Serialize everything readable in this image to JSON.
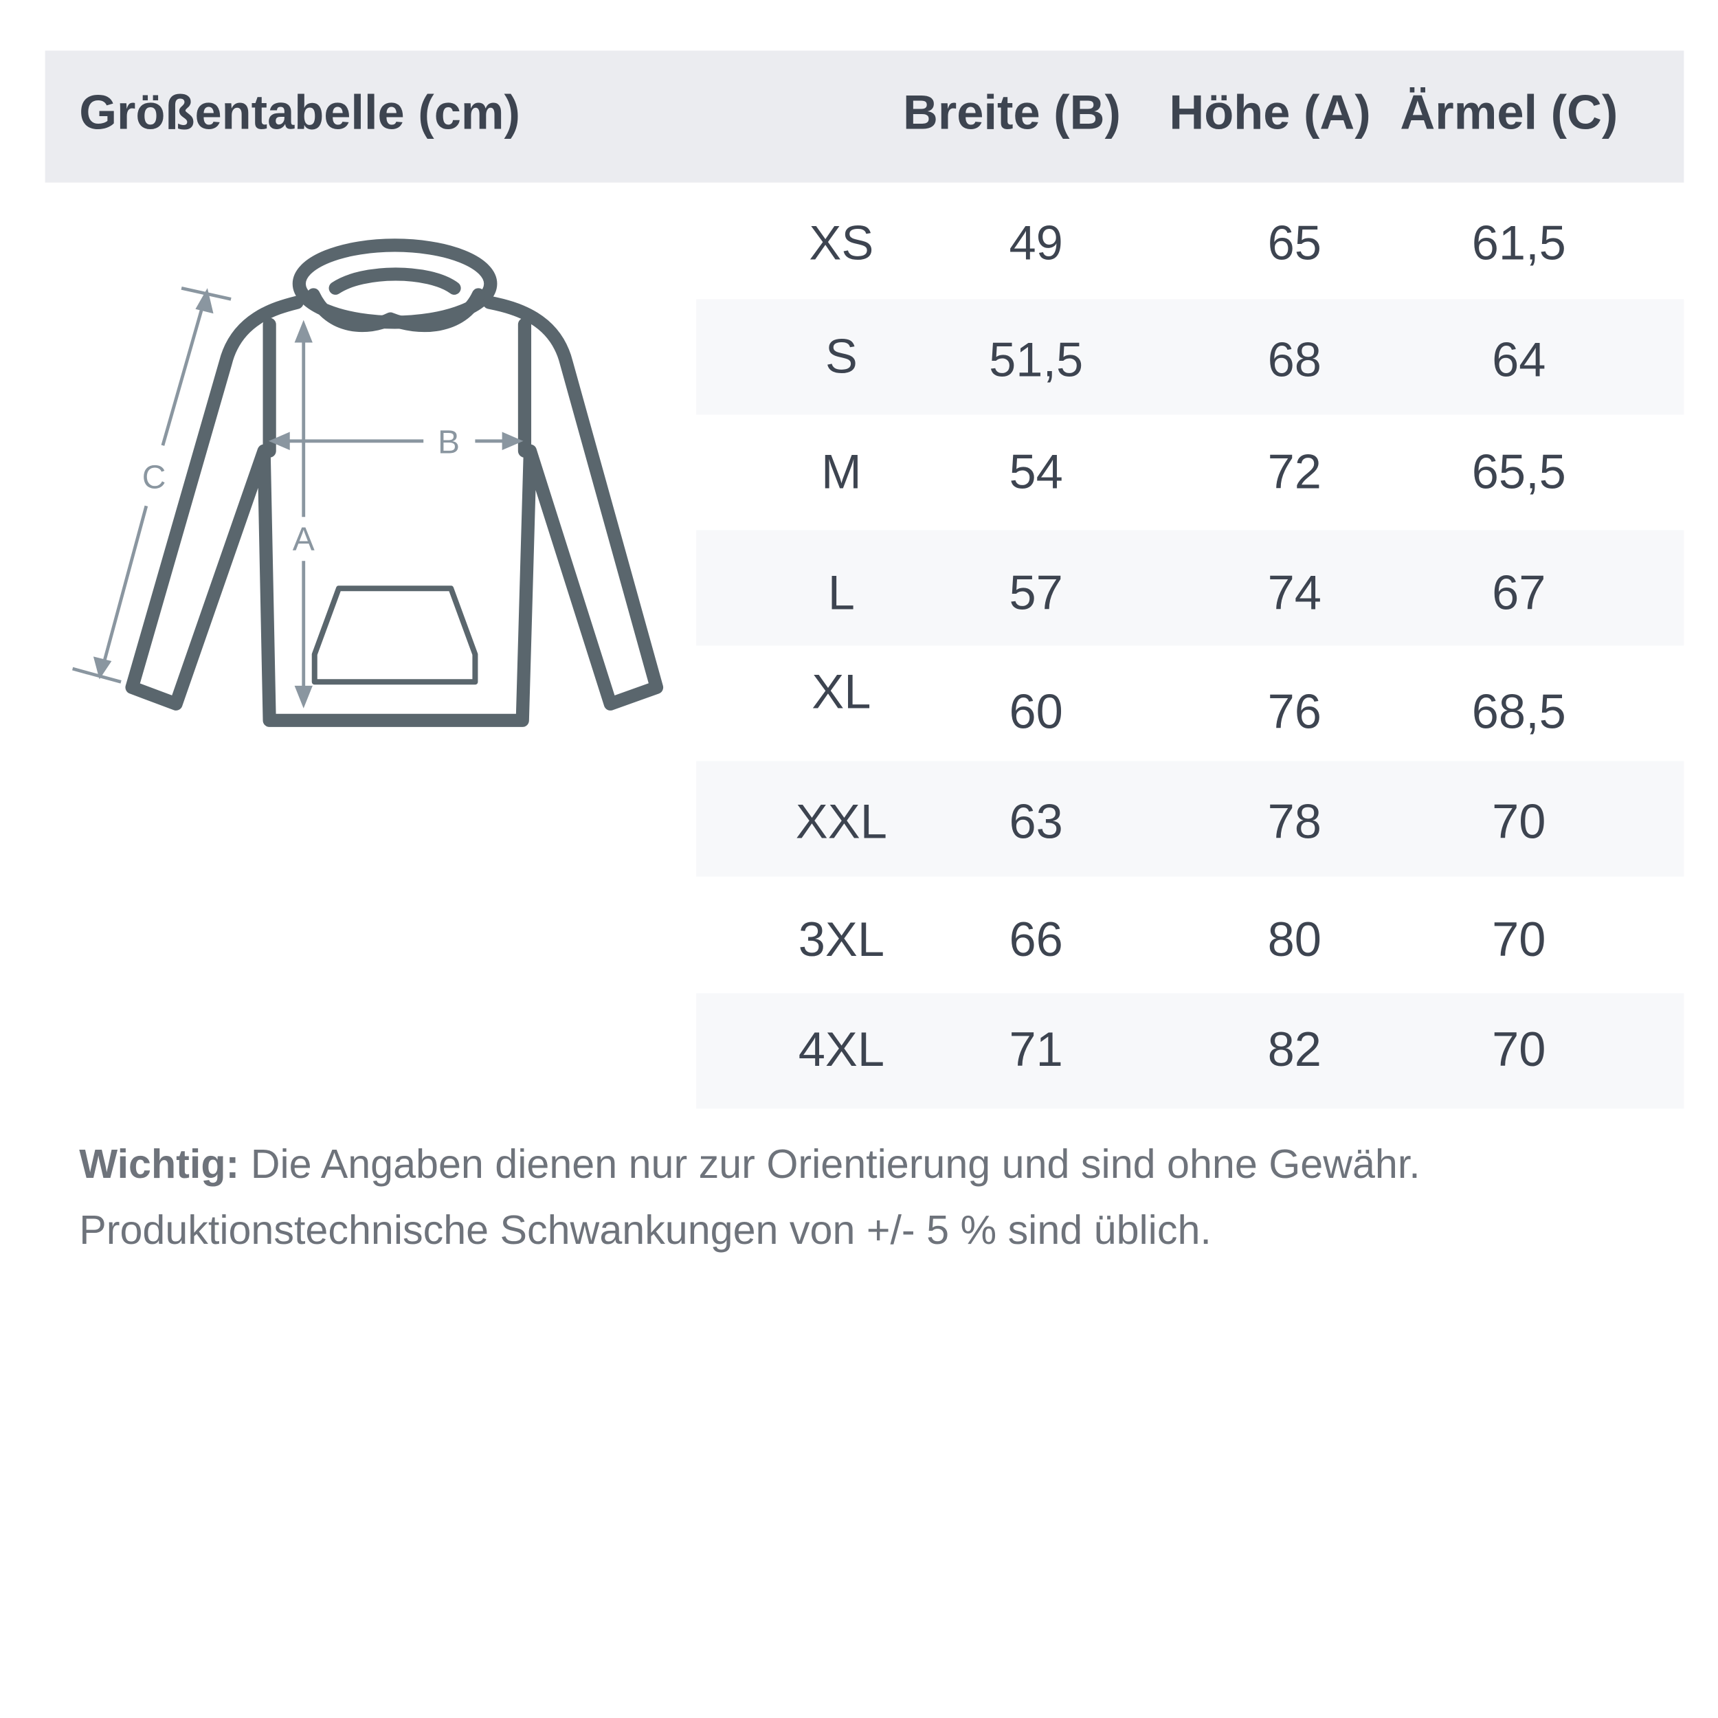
{
  "header": {
    "title": "Größentabelle (cm)",
    "col_breite": "Breite (B)",
    "col_hoehe": "Höhe (A)",
    "col_aermel": "Ärmel (C)"
  },
  "diagram": {
    "label_a": "A",
    "label_b": "B",
    "label_c": "C"
  },
  "rows": [
    {
      "size": "XS",
      "breite": "49",
      "hoehe": "65",
      "aermel": "61,5"
    },
    {
      "size": "S",
      "breite": "51,5",
      "hoehe": "68",
      "aermel": "64"
    },
    {
      "size": "M",
      "breite": "54",
      "hoehe": "72",
      "aermel": "65,5"
    },
    {
      "size": "L",
      "breite": "57",
      "hoehe": "74",
      "aermel": "67"
    },
    {
      "size": "XL",
      "breite": "60",
      "hoehe": "76",
      "aermel": "68,5"
    },
    {
      "size": "XXL",
      "breite": "63",
      "hoehe": "78",
      "aermel": "70"
    },
    {
      "size": "3XL",
      "breite": "66",
      "hoehe": "80",
      "aermel": "70"
    },
    {
      "size": "4XL",
      "breite": "71",
      "hoehe": "82",
      "aermel": "70"
    }
  ],
  "note": {
    "bold": "Wichtig:",
    "line1": " Die Angaben dienen nur zur Orientierung und sind ohne Gewähr.",
    "line2": "Produktionstechnische Schwankungen von +/- 5 % sind üblich."
  },
  "colors": {
    "header_bg": "#ebecf0",
    "stripe": "#f7f8fa",
    "text": "#3d4450",
    "hoodie": "#5a666d",
    "arrows": "#8a96a0"
  }
}
